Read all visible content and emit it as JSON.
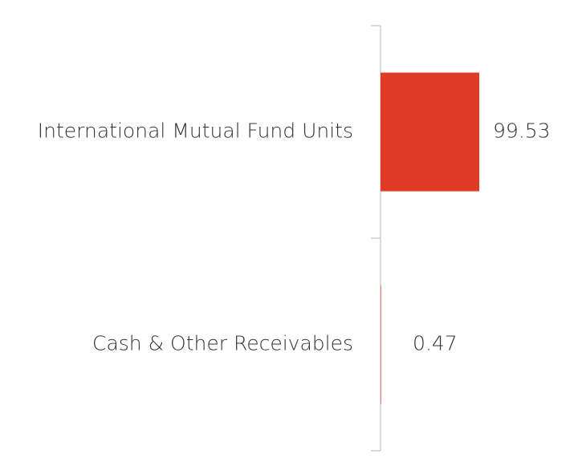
{
  "chart_data": {
    "type": "bar",
    "orientation": "horizontal",
    "categories": [
      "International Mutual Fund Units",
      "Cash & Other Receivables"
    ],
    "values": [
      99.53,
      0.47
    ],
    "color": "#e03b27"
  }
}
